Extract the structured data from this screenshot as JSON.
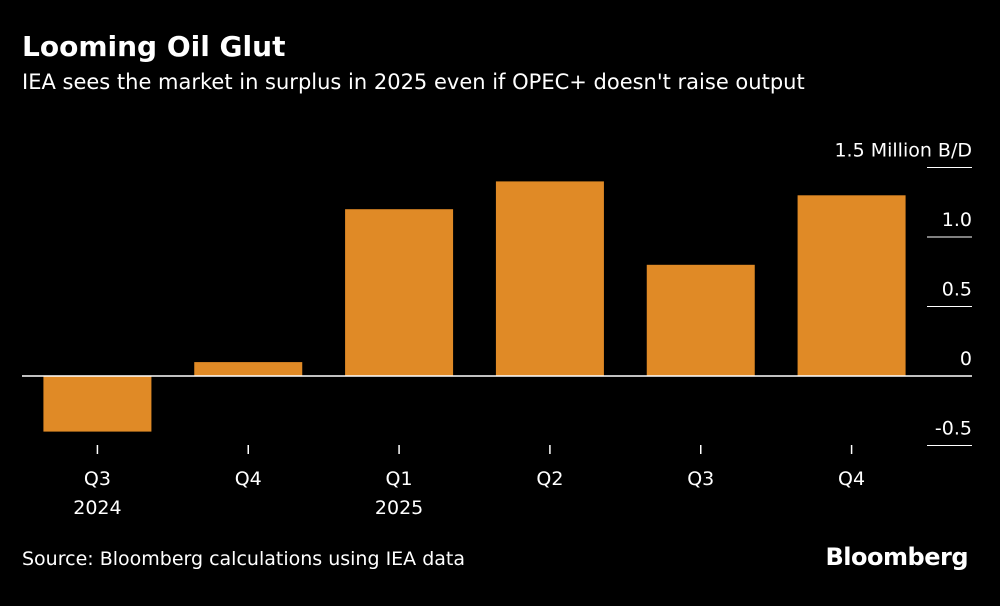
{
  "header": {
    "title": "Looming Oil Glut",
    "subtitle": "IEA sees the market in surplus in 2025 even if OPEC+ doesn't raise output"
  },
  "footer": {
    "source": "Source: Bloomberg calculations using IEA data",
    "brand": "Bloomberg"
  },
  "colors": {
    "background": "#000000",
    "bar": "#E08A26",
    "axis": "#FFFFFF",
    "text": "#FFFFFF"
  },
  "chart_data": {
    "type": "bar",
    "categories": [
      "Q3",
      "Q4",
      "Q1",
      "Q2",
      "Q3",
      "Q4"
    ],
    "category_years": [
      "2024",
      "",
      "2025",
      "",
      "",
      ""
    ],
    "values": [
      -0.4,
      0.1,
      1.2,
      1.4,
      0.8,
      1.3
    ],
    "unit": "Million B/D",
    "yticks": [
      -0.5,
      0,
      0.5,
      1.0,
      1.5
    ],
    "ytick_labels": [
      "-0.5",
      "0",
      "0.5",
      "1.0",
      "1.5 Million B/D"
    ],
    "ylim": [
      -0.5,
      1.5
    ],
    "grid": false,
    "legend": "none"
  }
}
